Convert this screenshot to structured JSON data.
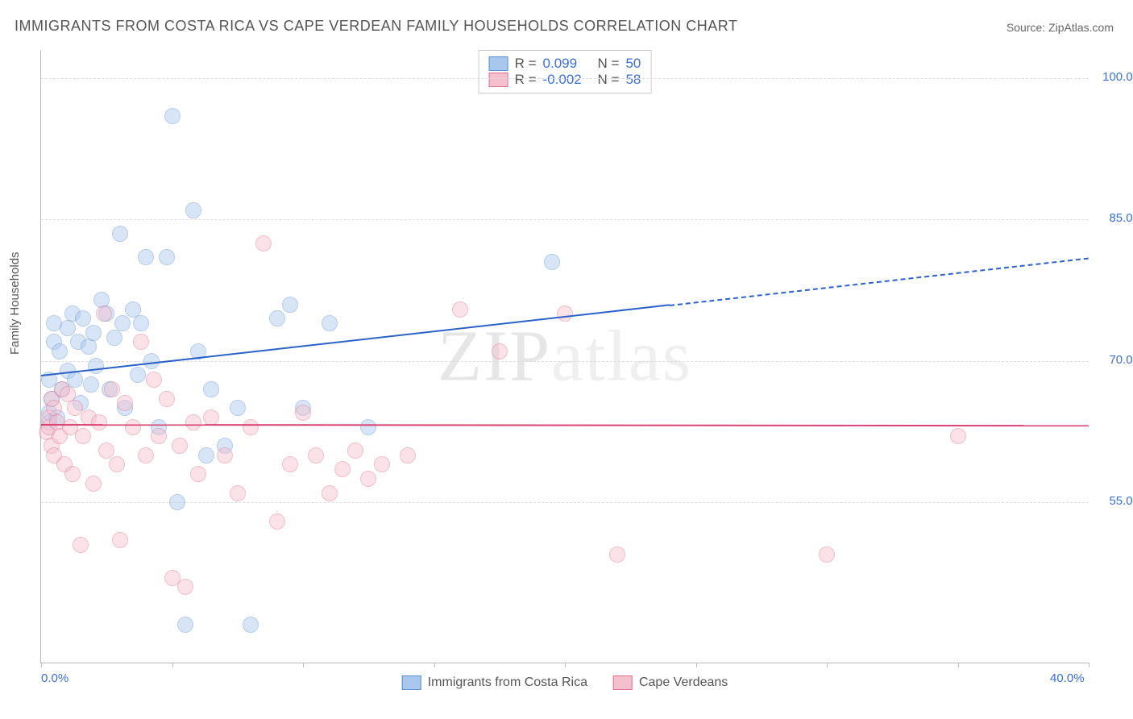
{
  "title": "IMMIGRANTS FROM COSTA RICA VS CAPE VERDEAN FAMILY HOUSEHOLDS CORRELATION CHART",
  "source": "Source: ZipAtlas.com",
  "ylabel": "Family Households",
  "watermark": "ZIPatlas",
  "chart": {
    "type": "scatter",
    "xlim": [
      0,
      40
    ],
    "ylim": [
      38,
      103
    ],
    "xticks": [
      0,
      40
    ],
    "xtick_labels": [
      "0.0%",
      "40.0%"
    ],
    "xtick_marks": [
      0,
      5,
      10,
      15,
      20,
      25,
      30,
      35,
      40
    ],
    "yticks": [
      55,
      70,
      85,
      100
    ],
    "ytick_labels": [
      "55.0%",
      "70.0%",
      "85.0%",
      "100.0%"
    ],
    "background_color": "#ffffff",
    "grid_color": "#dddddd",
    "marker_radius": 9,
    "marker_opacity": 0.45,
    "series": [
      {
        "name": "Immigrants from Costa Rica",
        "color_fill": "#a9c7ec",
        "color_stroke": "#5a8fd6",
        "R": "0.099",
        "N": "50",
        "trend": {
          "x1": 0,
          "y1": 68.5,
          "x2": 24,
          "y2": 76.0,
          "x3": 40,
          "y3": 81.0,
          "color": "#2b62c9",
          "width": 2
        },
        "points": [
          [
            0.3,
            63.5
          ],
          [
            0.3,
            64.5
          ],
          [
            0.3,
            68
          ],
          [
            0.4,
            66
          ],
          [
            0.5,
            74
          ],
          [
            0.5,
            72
          ],
          [
            0.6,
            64
          ],
          [
            0.7,
            71
          ],
          [
            0.8,
            67
          ],
          [
            1.0,
            73.5
          ],
          [
            1.0,
            69
          ],
          [
            1.2,
            75
          ],
          [
            1.3,
            68
          ],
          [
            1.4,
            72
          ],
          [
            1.5,
            65.5
          ],
          [
            1.6,
            74.5
          ],
          [
            1.8,
            71.5
          ],
          [
            1.9,
            67.5
          ],
          [
            2.0,
            73
          ],
          [
            2.1,
            69.5
          ],
          [
            2.3,
            76.5
          ],
          [
            2.5,
            75
          ],
          [
            2.6,
            67
          ],
          [
            2.8,
            72.5
          ],
          [
            3.0,
            83.5
          ],
          [
            3.1,
            74
          ],
          [
            3.2,
            65
          ],
          [
            3.5,
            75.5
          ],
          [
            3.7,
            68.5
          ],
          [
            3.8,
            74
          ],
          [
            4.0,
            81
          ],
          [
            4.2,
            70
          ],
          [
            4.5,
            63
          ],
          [
            4.8,
            81
          ],
          [
            5.0,
            96
          ],
          [
            5.2,
            55
          ],
          [
            5.5,
            42
          ],
          [
            5.8,
            86
          ],
          [
            6.0,
            71
          ],
          [
            6.3,
            60
          ],
          [
            6.5,
            67
          ],
          [
            7.0,
            61
          ],
          [
            7.5,
            65
          ],
          [
            8.0,
            42
          ],
          [
            9.0,
            74.5
          ],
          [
            9.5,
            76
          ],
          [
            10.0,
            65
          ],
          [
            11.0,
            74
          ],
          [
            12.5,
            63
          ],
          [
            19.5,
            80.5
          ]
        ]
      },
      {
        "name": "Cape Verdeans",
        "color_fill": "#f4c0cd",
        "color_stroke": "#e1708e",
        "R": "-0.002",
        "N": "58",
        "trend": {
          "x1": 0,
          "y1": 63.3,
          "x2": 40,
          "y2": 63.2,
          "color": "#d94372",
          "width": 2
        },
        "points": [
          [
            0.2,
            62.5
          ],
          [
            0.3,
            63
          ],
          [
            0.3,
            64
          ],
          [
            0.4,
            61
          ],
          [
            0.4,
            66
          ],
          [
            0.5,
            60
          ],
          [
            0.5,
            65
          ],
          [
            0.6,
            63.5
          ],
          [
            0.7,
            62
          ],
          [
            0.8,
            67
          ],
          [
            0.9,
            59
          ],
          [
            1.0,
            66.5
          ],
          [
            1.1,
            63
          ],
          [
            1.2,
            58
          ],
          [
            1.3,
            65
          ],
          [
            1.5,
            50.5
          ],
          [
            1.6,
            62
          ],
          [
            1.8,
            64
          ],
          [
            2.0,
            57
          ],
          [
            2.2,
            63.5
          ],
          [
            2.4,
            75
          ],
          [
            2.5,
            60.5
          ],
          [
            2.7,
            67
          ],
          [
            2.9,
            59
          ],
          [
            3.0,
            51
          ],
          [
            3.2,
            65.5
          ],
          [
            3.5,
            63
          ],
          [
            3.8,
            72
          ],
          [
            4.0,
            60
          ],
          [
            4.3,
            68
          ],
          [
            4.5,
            62
          ],
          [
            4.8,
            66
          ],
          [
            5.0,
            47
          ],
          [
            5.3,
            61
          ],
          [
            5.5,
            46
          ],
          [
            5.8,
            63.5
          ],
          [
            6.0,
            58
          ],
          [
            6.5,
            64
          ],
          [
            7.0,
            60
          ],
          [
            7.5,
            56
          ],
          [
            8.0,
            63
          ],
          [
            8.5,
            82.5
          ],
          [
            9.0,
            53
          ],
          [
            9.5,
            59
          ],
          [
            10.0,
            64.5
          ],
          [
            10.5,
            60
          ],
          [
            11.0,
            56
          ],
          [
            11.5,
            58.5
          ],
          [
            12.0,
            60.5
          ],
          [
            12.5,
            57.5
          ],
          [
            13.0,
            59
          ],
          [
            14.0,
            60
          ],
          [
            16.0,
            75.5
          ],
          [
            17.5,
            71
          ],
          [
            20.0,
            75
          ],
          [
            22.0,
            49.5
          ],
          [
            30.0,
            49.5
          ],
          [
            35.0,
            62
          ]
        ]
      }
    ]
  },
  "legend_top": {
    "r_label": "R =",
    "n_label": "N ="
  },
  "colors": {
    "axis_text": "#3a6fd8",
    "value_text": "#3a6fd8"
  }
}
